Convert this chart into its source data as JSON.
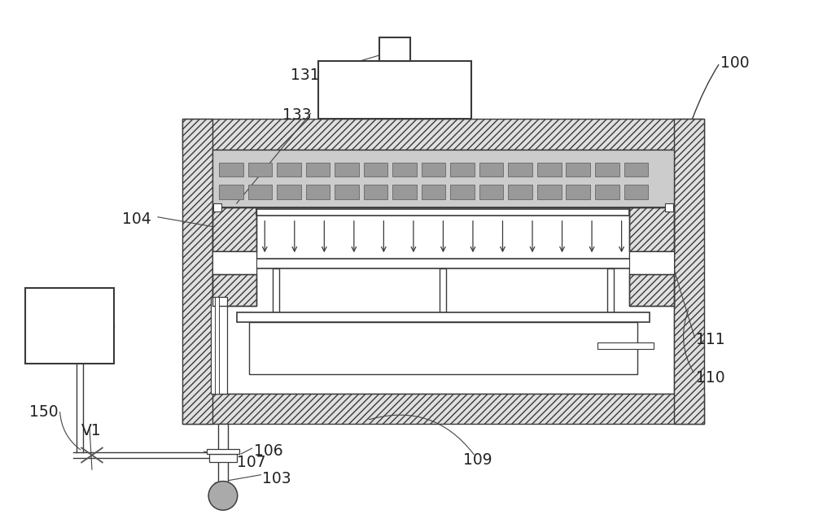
{
  "bg_color": "#ffffff",
  "line_color": "#3a3a3a",
  "label_color": "#222222",
  "figsize": [
    10.0,
    6.54
  ],
  "dpi": 100
}
